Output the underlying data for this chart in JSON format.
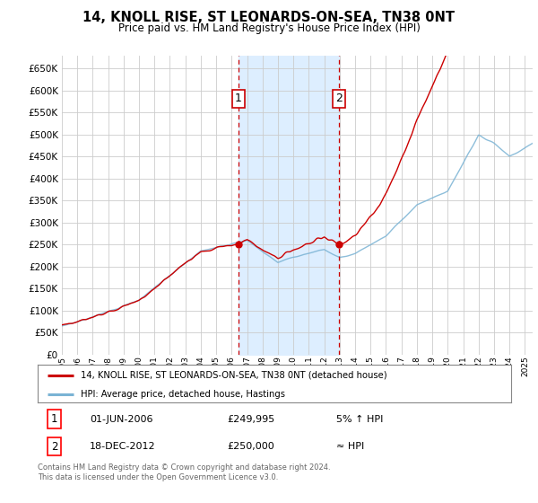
{
  "title": "14, KNOLL RISE, ST LEONARDS-ON-SEA, TN38 0NT",
  "subtitle": "Price paid vs. HM Land Registry's House Price Index (HPI)",
  "legend_line1": "14, KNOLL RISE, ST LEONARDS-ON-SEA, TN38 0NT (detached house)",
  "legend_line2": "HPI: Average price, detached house, Hastings",
  "annotation1_label": "1",
  "annotation1_date": "01-JUN-2006",
  "annotation1_price": "£249,995",
  "annotation1_hpi": "5% ↑ HPI",
  "annotation2_label": "2",
  "annotation2_date": "18-DEC-2012",
  "annotation2_price": "£250,000",
  "annotation2_hpi": "≈ HPI",
  "footer": "Contains HM Land Registry data © Crown copyright and database right 2024.\nThis data is licensed under the Open Government Licence v3.0.",
  "price_color": "#cc0000",
  "hpi_color": "#7ab3d4",
  "shaded_color": "#ddeeff",
  "vline_color": "#cc0000",
  "marker_color": "#cc0000",
  "ylim_min": 0,
  "ylim_max": 680000,
  "yticks": [
    0,
    50000,
    100000,
    150000,
    200000,
    250000,
    300000,
    350000,
    400000,
    450000,
    500000,
    550000,
    600000,
    650000
  ],
  "sale1_x": 2006.42,
  "sale1_y": 249995,
  "sale2_x": 2012.96,
  "sale2_y": 250000,
  "shade_xmin": 2006.42,
  "shade_xmax": 2012.96,
  "xmin": 1995.0,
  "xmax": 2025.5
}
